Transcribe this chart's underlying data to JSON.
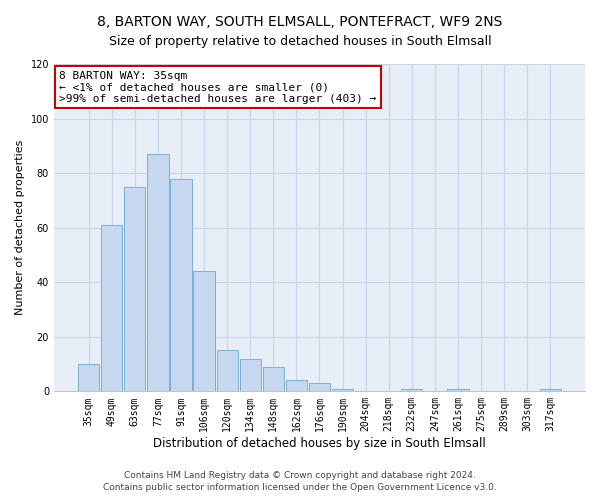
{
  "title": "8, BARTON WAY, SOUTH ELMSALL, PONTEFRACT, WF9 2NS",
  "subtitle": "Size of property relative to detached houses in South Elmsall",
  "xlabel": "Distribution of detached houses by size in South Elmsall",
  "ylabel": "Number of detached properties",
  "bar_labels": [
    "35sqm",
    "49sqm",
    "63sqm",
    "77sqm",
    "91sqm",
    "106sqm",
    "120sqm",
    "134sqm",
    "148sqm",
    "162sqm",
    "176sqm",
    "190sqm",
    "204sqm",
    "218sqm",
    "232sqm",
    "247sqm",
    "261sqm",
    "275sqm",
    "289sqm",
    "303sqm",
    "317sqm"
  ],
  "bar_values": [
    10,
    61,
    75,
    87,
    78,
    44,
    15,
    12,
    9,
    4,
    3,
    1,
    0,
    0,
    1,
    0,
    1,
    0,
    0,
    0,
    1
  ],
  "bar_color": "#c5d8f0",
  "bar_edge_color": "#7bafd4",
  "annotation_title": "8 BARTON WAY: 35sqm",
  "annotation_line1": "← <1% of detached houses are smaller (0)",
  "annotation_line2": ">99% of semi-detached houses are larger (403) →",
  "annotation_box_facecolor": "#ffffff",
  "annotation_box_edge": "#cc0000",
  "ylim": [
    0,
    120
  ],
  "yticks": [
    0,
    20,
    40,
    60,
    80,
    100,
    120
  ],
  "footer1": "Contains HM Land Registry data © Crown copyright and database right 2024.",
  "footer2": "Contains public sector information licensed under the Open Government Licence v3.0.",
  "bg_color": "#ffffff",
  "plot_bg_color": "#e8eef7",
  "grid_color": "#c8d4e8",
  "title_fontsize": 10,
  "subtitle_fontsize": 9,
  "xlabel_fontsize": 8.5,
  "ylabel_fontsize": 8,
  "tick_fontsize": 7,
  "annotation_fontsize": 8,
  "footer_fontsize": 6.5
}
